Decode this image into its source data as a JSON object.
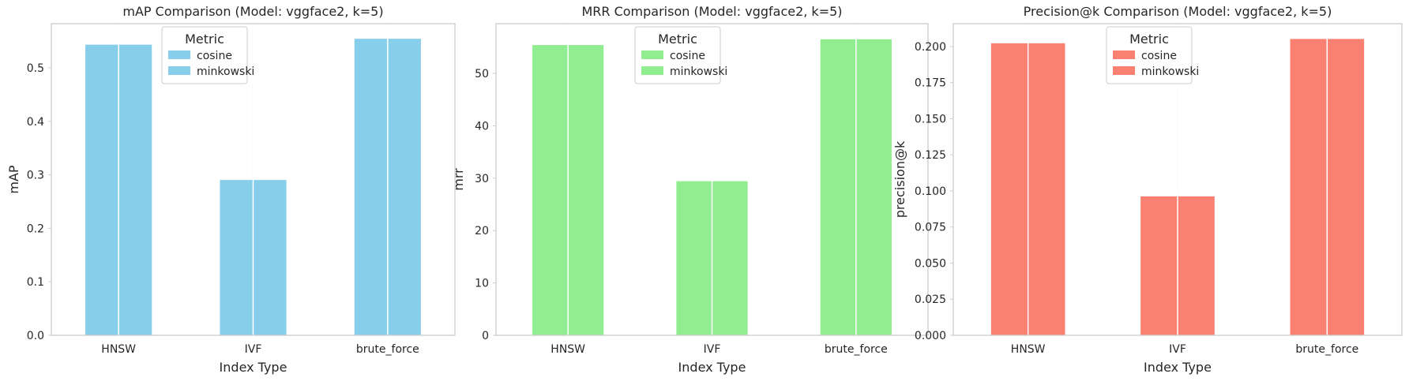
{
  "chart_data": [
    {
      "type": "bar",
      "title": "mAP Comparison (Model: vggface2, k=5)",
      "xlabel": "Index Type",
      "ylabel": "mAP",
      "categories": [
        "HNSW",
        "IVF",
        "brute_force"
      ],
      "series": [
        {
          "name": "cosine",
          "values": [
            0.544,
            0.291,
            0.555
          ]
        },
        {
          "name": "minkowski",
          "values": [
            0.544,
            0.291,
            0.555
          ]
        }
      ],
      "ylim": [
        0,
        0.5825
      ],
      "yticks": [
        0.0,
        0.1,
        0.2,
        0.3,
        0.4,
        0.5
      ],
      "ytick_labels": [
        "0.0",
        "0.1",
        "0.2",
        "0.3",
        "0.4",
        "0.5"
      ],
      "color": "#87CEEB",
      "legend": {
        "title": "Metric",
        "placement": "top-center"
      },
      "grid": "x-only"
    },
    {
      "type": "bar",
      "title": "MRR Comparison (Model: vggface2, k=5)",
      "xlabel": "Index Type",
      "ylabel": "mrr",
      "categories": [
        "HNSW",
        "IVF",
        "brute_force"
      ],
      "series": [
        {
          "name": "cosine",
          "values": [
            55.5,
            29.5,
            56.6
          ]
        },
        {
          "name": "minkowski",
          "values": [
            55.5,
            29.5,
            56.6
          ]
        }
      ],
      "ylim": [
        0,
        59.5
      ],
      "yticks": [
        0,
        10,
        20,
        30,
        40,
        50
      ],
      "ytick_labels": [
        "0",
        "10",
        "20",
        "30",
        "40",
        "50"
      ],
      "color": "#90EE90",
      "legend": {
        "title": "Metric",
        "placement": "top-center"
      },
      "grid": "x-only"
    },
    {
      "type": "bar",
      "title": "Precision@k Comparison (Model: vggface2, k=5)",
      "xlabel": "Index Type",
      "ylabel": "precision@k",
      "categories": [
        "HNSW",
        "IVF",
        "brute_force"
      ],
      "series": [
        {
          "name": "cosine",
          "values": [
            0.2025,
            0.0965,
            0.2055
          ]
        },
        {
          "name": "minkowski",
          "values": [
            0.2025,
            0.0965,
            0.2055
          ]
        }
      ],
      "ylim": [
        0,
        0.2158
      ],
      "yticks": [
        0.0,
        0.025,
        0.05,
        0.075,
        0.1,
        0.125,
        0.15,
        0.175,
        0.2
      ],
      "ytick_labels": [
        "0.000",
        "0.025",
        "0.050",
        "0.075",
        "0.100",
        "0.125",
        "0.150",
        "0.175",
        "0.200"
      ],
      "color": "#FA8072",
      "legend": {
        "title": "Metric",
        "placement": "top-center"
      },
      "grid": "x-only"
    }
  ]
}
